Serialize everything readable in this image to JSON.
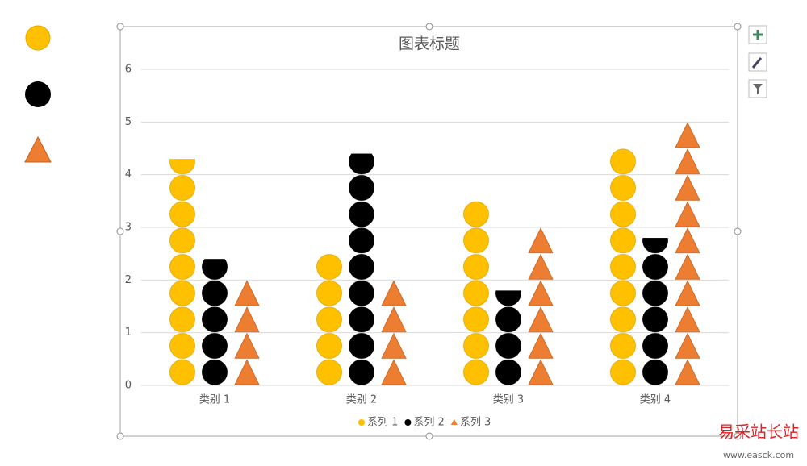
{
  "chart_data": {
    "type": "pictograph-bar",
    "title": "图表标题",
    "categories": [
      "类别 1",
      "类别 2",
      "类别 3",
      "类别 4"
    ],
    "series": [
      {
        "name": "系列 1",
        "color": "#FFC000",
        "shape": "circle",
        "values": [
          4.3,
          2.5,
          3.5,
          4.5
        ]
      },
      {
        "name": "系列 2",
        "color": "#000000",
        "shape": "circle",
        "values": [
          2.4,
          4.4,
          1.8,
          2.8
        ]
      },
      {
        "name": "系列 3",
        "color": "#ED7D31",
        "shape": "triangle",
        "values": [
          2,
          2,
          3,
          5
        ]
      }
    ],
    "unit": 0.5,
    "ylim": [
      0,
      6
    ],
    "yticks": [
      0,
      1,
      2,
      3,
      4,
      5,
      6
    ],
    "grid": true,
    "legend": "bottom"
  },
  "watermark": {
    "name": "易采站长站",
    "url": "www.easck.com"
  }
}
